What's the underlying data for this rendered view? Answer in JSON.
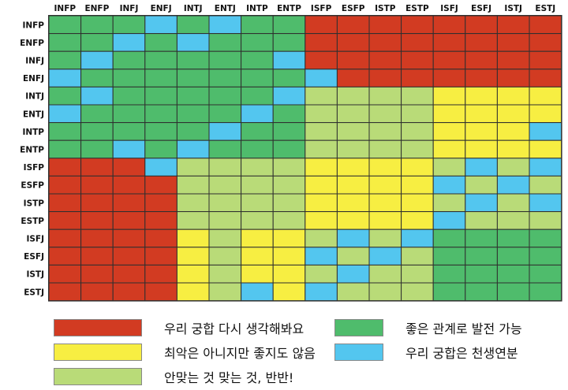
{
  "chart_data": {
    "type": "heatmap",
    "columns": [
      "INFP",
      "ENFP",
      "INFJ",
      "ENFJ",
      "INTJ",
      "ENTJ",
      "INTP",
      "ENTP",
      "ISFP",
      "ESFP",
      "ISTP",
      "ESTP",
      "ISFJ",
      "ESFJ",
      "ISTJ",
      "ESTJ"
    ],
    "rows": [
      "INFP",
      "ENFP",
      "INFJ",
      "ENFJ",
      "INTJ",
      "ENTJ",
      "INTP",
      "ENTP",
      "ISFP",
      "ESFP",
      "ISTP",
      "ESTP",
      "ISFJ",
      "ESFJ",
      "ISTJ",
      "ESTJ"
    ],
    "cells": [
      [
        "G",
        "G",
        "G",
        "B",
        "G",
        "B",
        "G",
        "G",
        "R",
        "R",
        "R",
        "R",
        "R",
        "R",
        "R",
        "R"
      ],
      [
        "G",
        "G",
        "B",
        "G",
        "B",
        "G",
        "G",
        "G",
        "R",
        "R",
        "R",
        "R",
        "R",
        "R",
        "R",
        "R"
      ],
      [
        "G",
        "B",
        "G",
        "G",
        "G",
        "G",
        "G",
        "B",
        "R",
        "R",
        "R",
        "R",
        "R",
        "R",
        "R",
        "R"
      ],
      [
        "B",
        "G",
        "G",
        "G",
        "G",
        "G",
        "G",
        "G",
        "B",
        "R",
        "R",
        "R",
        "R",
        "R",
        "R",
        "R"
      ],
      [
        "G",
        "B",
        "G",
        "G",
        "G",
        "G",
        "G",
        "B",
        "L",
        "L",
        "L",
        "L",
        "Y",
        "Y",
        "Y",
        "Y"
      ],
      [
        "B",
        "G",
        "G",
        "G",
        "G",
        "G",
        "B",
        "G",
        "L",
        "L",
        "L",
        "L",
        "Y",
        "Y",
        "Y",
        "Y"
      ],
      [
        "G",
        "G",
        "G",
        "G",
        "G",
        "B",
        "G",
        "G",
        "L",
        "L",
        "L",
        "L",
        "Y",
        "Y",
        "Y",
        "B"
      ],
      [
        "G",
        "G",
        "B",
        "G",
        "B",
        "G",
        "G",
        "G",
        "L",
        "L",
        "L",
        "L",
        "Y",
        "Y",
        "Y",
        "Y"
      ],
      [
        "R",
        "R",
        "R",
        "B",
        "L",
        "L",
        "L",
        "L",
        "Y",
        "Y",
        "Y",
        "Y",
        "L",
        "B",
        "L",
        "B"
      ],
      [
        "R",
        "R",
        "R",
        "R",
        "L",
        "L",
        "L",
        "L",
        "Y",
        "Y",
        "Y",
        "Y",
        "B",
        "L",
        "B",
        "L"
      ],
      [
        "R",
        "R",
        "R",
        "R",
        "L",
        "L",
        "L",
        "L",
        "Y",
        "Y",
        "Y",
        "Y",
        "L",
        "B",
        "L",
        "B"
      ],
      [
        "R",
        "R",
        "R",
        "R",
        "L",
        "L",
        "L",
        "L",
        "Y",
        "Y",
        "Y",
        "Y",
        "B",
        "L",
        "L",
        "L"
      ],
      [
        "R",
        "R",
        "R",
        "R",
        "Y",
        "L",
        "Y",
        "Y",
        "L",
        "B",
        "L",
        "B",
        "G",
        "G",
        "G",
        "G"
      ],
      [
        "R",
        "R",
        "R",
        "R",
        "Y",
        "L",
        "Y",
        "Y",
        "B",
        "L",
        "B",
        "L",
        "G",
        "G",
        "G",
        "G"
      ],
      [
        "R",
        "R",
        "R",
        "R",
        "Y",
        "L",
        "Y",
        "Y",
        "L",
        "B",
        "L",
        "L",
        "G",
        "G",
        "G",
        "G"
      ],
      [
        "R",
        "R",
        "R",
        "R",
        "Y",
        "L",
        "B",
        "Y",
        "B",
        "L",
        "L",
        "L",
        "G",
        "G",
        "G",
        "G"
      ]
    ],
    "legend": [
      {
        "key": "R",
        "label": "우리 궁합 다시 생각해봐요",
        "color": "#d23b22"
      },
      {
        "key": "G",
        "label": "좋은 관계로 발전 가능",
        "color": "#4fbc6c"
      },
      {
        "key": "Y",
        "label": "최악은 아니지만 좋지도 않음",
        "color": "#f7ee42"
      },
      {
        "key": "B",
        "label": "우리 궁합은 천생연분",
        "color": "#53c6ef"
      },
      {
        "key": "L",
        "label": "안맞는 것 맞는 것, 반반!",
        "color": "#b9db78"
      }
    ],
    "legend_placement": "bottom"
  }
}
